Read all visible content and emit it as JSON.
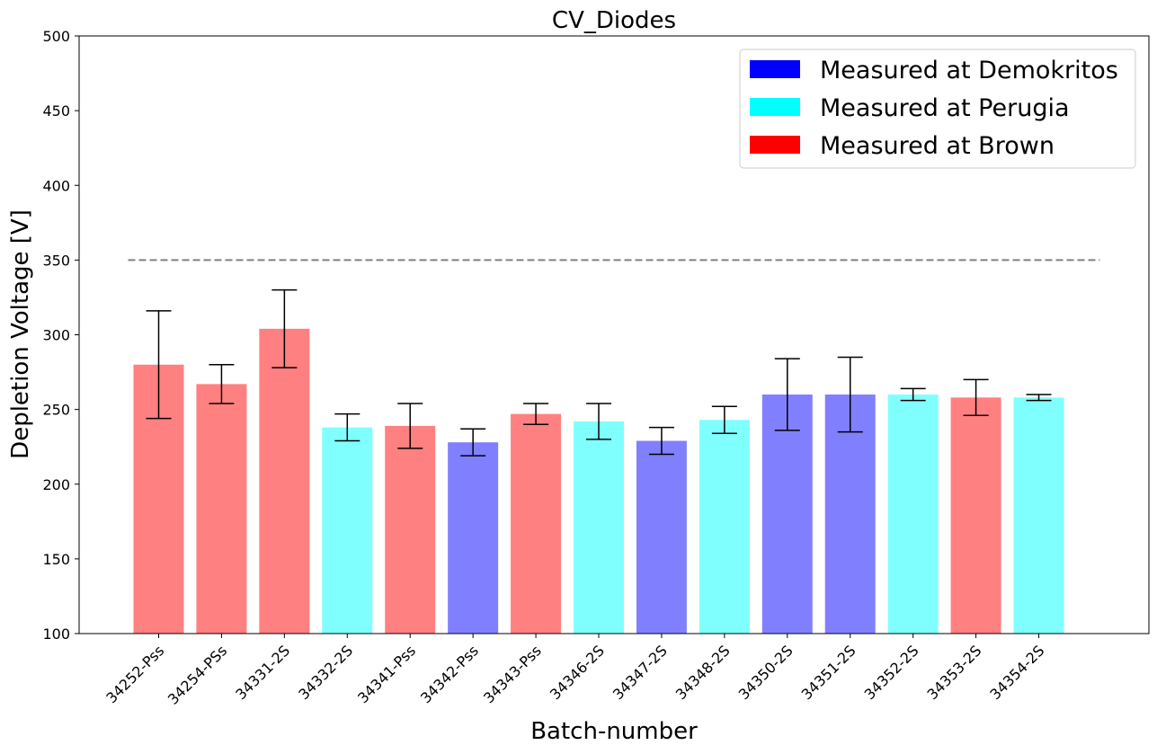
{
  "chart_data": {
    "type": "bar",
    "title": "CV_Diodes",
    "xlabel": "Batch-number",
    "ylabel": "Depletion Voltage [V]",
    "ylim": [
      100,
      500
    ],
    "yticks": [
      100,
      150,
      200,
      250,
      300,
      350,
      400,
      450,
      500
    ],
    "reference_line": 350,
    "categories": [
      "34252-Pss",
      "34254-PSs",
      "34331-2S",
      "34332-2S",
      "34341-Pss",
      "34342-Pss",
      "34343-Pss",
      "34346-2S",
      "34347-2S",
      "34348-2S",
      "34350-2S",
      "34351-2S",
      "34352-2S",
      "34353-2S",
      "34354-2S"
    ],
    "values": [
      280,
      267,
      304,
      238,
      239,
      228,
      247,
      242,
      229,
      243,
      260,
      260,
      260,
      258,
      258
    ],
    "error_low": [
      244,
      254,
      278,
      229,
      224,
      219,
      240,
      230,
      220,
      234,
      236,
      235,
      256,
      246,
      256
    ],
    "error_high": [
      316,
      280,
      330,
      247,
      254,
      237,
      254,
      254,
      238,
      252,
      284,
      285,
      264,
      270,
      260
    ],
    "site": [
      "Brown",
      "Brown",
      "Brown",
      "Perugia",
      "Brown",
      "Demokritos",
      "Brown",
      "Perugia",
      "Demokritos",
      "Perugia",
      "Demokritos",
      "Demokritos",
      "Perugia",
      "Brown",
      "Perugia"
    ],
    "legend": [
      {
        "key": "Demokritos",
        "label": "Measured at Demokritos",
        "color": "#0000ff"
      },
      {
        "key": "Perugia",
        "label": "Measured at Perugia",
        "color": "#00ffff"
      },
      {
        "key": "Brown",
        "label": "Measured at Brown",
        "color": "#ff0000"
      }
    ],
    "legend_position": "top-right",
    "bar_colors": {
      "Demokritos": "#8080ff",
      "Perugia": "#80ffff",
      "Brown": "#ff8080"
    },
    "reference_line_color": "#808080",
    "grid": false
  }
}
